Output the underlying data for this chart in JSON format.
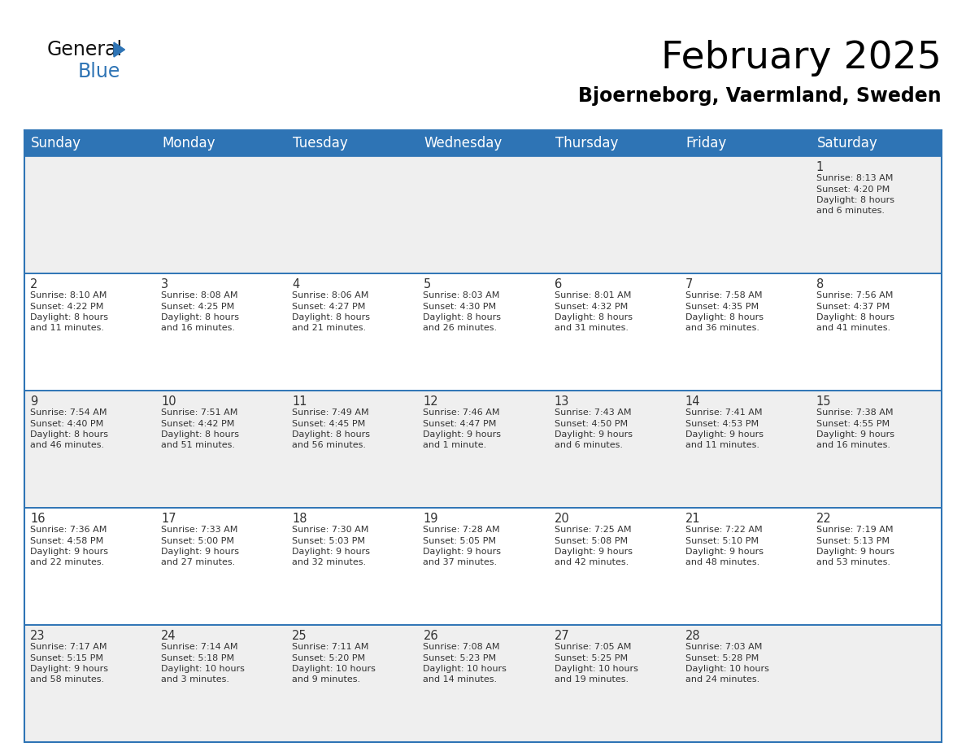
{
  "title": "February 2025",
  "subtitle": "Bjoerneborg, Vaermland, Sweden",
  "header_bg_color": "#2E74B5",
  "header_text_color": "#FFFFFF",
  "cell_bg_even": "#EFEFEF",
  "cell_bg_odd": "#FFFFFF",
  "border_color": "#2E74B5",
  "day_headers": [
    "Sunday",
    "Monday",
    "Tuesday",
    "Wednesday",
    "Thursday",
    "Friday",
    "Saturday"
  ],
  "title_fontsize": 34,
  "subtitle_fontsize": 17,
  "header_fontsize": 12,
  "cell_number_fontsize": 10.5,
  "cell_text_fontsize": 8,
  "logo_general_fontsize": 17,
  "logo_blue_fontsize": 17,
  "logo_color1": "#111111",
  "logo_color2": "#2E74B5",
  "triangle_color": "#2E74B5",
  "days": [
    {
      "day": 1,
      "week_row": 0,
      "col": 6,
      "sunrise": "8:13 AM",
      "sunset": "4:20 PM",
      "daylight_line1": "Daylight: 8 hours",
      "daylight_line2": "and 6 minutes."
    },
    {
      "day": 2,
      "week_row": 1,
      "col": 0,
      "sunrise": "8:10 AM",
      "sunset": "4:22 PM",
      "daylight_line1": "Daylight: 8 hours",
      "daylight_line2": "and 11 minutes."
    },
    {
      "day": 3,
      "week_row": 1,
      "col": 1,
      "sunrise": "8:08 AM",
      "sunset": "4:25 PM",
      "daylight_line1": "Daylight: 8 hours",
      "daylight_line2": "and 16 minutes."
    },
    {
      "day": 4,
      "week_row": 1,
      "col": 2,
      "sunrise": "8:06 AM",
      "sunset": "4:27 PM",
      "daylight_line1": "Daylight: 8 hours",
      "daylight_line2": "and 21 minutes."
    },
    {
      "day": 5,
      "week_row": 1,
      "col": 3,
      "sunrise": "8:03 AM",
      "sunset": "4:30 PM",
      "daylight_line1": "Daylight: 8 hours",
      "daylight_line2": "and 26 minutes."
    },
    {
      "day": 6,
      "week_row": 1,
      "col": 4,
      "sunrise": "8:01 AM",
      "sunset": "4:32 PM",
      "daylight_line1": "Daylight: 8 hours",
      "daylight_line2": "and 31 minutes."
    },
    {
      "day": 7,
      "week_row": 1,
      "col": 5,
      "sunrise": "7:58 AM",
      "sunset": "4:35 PM",
      "daylight_line1": "Daylight: 8 hours",
      "daylight_line2": "and 36 minutes."
    },
    {
      "day": 8,
      "week_row": 1,
      "col": 6,
      "sunrise": "7:56 AM",
      "sunset": "4:37 PM",
      "daylight_line1": "Daylight: 8 hours",
      "daylight_line2": "and 41 minutes."
    },
    {
      "day": 9,
      "week_row": 2,
      "col": 0,
      "sunrise": "7:54 AM",
      "sunset": "4:40 PM",
      "daylight_line1": "Daylight: 8 hours",
      "daylight_line2": "and 46 minutes."
    },
    {
      "day": 10,
      "week_row": 2,
      "col": 1,
      "sunrise": "7:51 AM",
      "sunset": "4:42 PM",
      "daylight_line1": "Daylight: 8 hours",
      "daylight_line2": "and 51 minutes."
    },
    {
      "day": 11,
      "week_row": 2,
      "col": 2,
      "sunrise": "7:49 AM",
      "sunset": "4:45 PM",
      "daylight_line1": "Daylight: 8 hours",
      "daylight_line2": "and 56 minutes."
    },
    {
      "day": 12,
      "week_row": 2,
      "col": 3,
      "sunrise": "7:46 AM",
      "sunset": "4:47 PM",
      "daylight_line1": "Daylight: 9 hours",
      "daylight_line2": "and 1 minute."
    },
    {
      "day": 13,
      "week_row": 2,
      "col": 4,
      "sunrise": "7:43 AM",
      "sunset": "4:50 PM",
      "daylight_line1": "Daylight: 9 hours",
      "daylight_line2": "and 6 minutes."
    },
    {
      "day": 14,
      "week_row": 2,
      "col": 5,
      "sunrise": "7:41 AM",
      "sunset": "4:53 PM",
      "daylight_line1": "Daylight: 9 hours",
      "daylight_line2": "and 11 minutes."
    },
    {
      "day": 15,
      "week_row": 2,
      "col": 6,
      "sunrise": "7:38 AM",
      "sunset": "4:55 PM",
      "daylight_line1": "Daylight: 9 hours",
      "daylight_line2": "and 16 minutes."
    },
    {
      "day": 16,
      "week_row": 3,
      "col": 0,
      "sunrise": "7:36 AM",
      "sunset": "4:58 PM",
      "daylight_line1": "Daylight: 9 hours",
      "daylight_line2": "and 22 minutes."
    },
    {
      "day": 17,
      "week_row": 3,
      "col": 1,
      "sunrise": "7:33 AM",
      "sunset": "5:00 PM",
      "daylight_line1": "Daylight: 9 hours",
      "daylight_line2": "and 27 minutes."
    },
    {
      "day": 18,
      "week_row": 3,
      "col": 2,
      "sunrise": "7:30 AM",
      "sunset": "5:03 PM",
      "daylight_line1": "Daylight: 9 hours",
      "daylight_line2": "and 32 minutes."
    },
    {
      "day": 19,
      "week_row": 3,
      "col": 3,
      "sunrise": "7:28 AM",
      "sunset": "5:05 PM",
      "daylight_line1": "Daylight: 9 hours",
      "daylight_line2": "and 37 minutes."
    },
    {
      "day": 20,
      "week_row": 3,
      "col": 4,
      "sunrise": "7:25 AM",
      "sunset": "5:08 PM",
      "daylight_line1": "Daylight: 9 hours",
      "daylight_line2": "and 42 minutes."
    },
    {
      "day": 21,
      "week_row": 3,
      "col": 5,
      "sunrise": "7:22 AM",
      "sunset": "5:10 PM",
      "daylight_line1": "Daylight: 9 hours",
      "daylight_line2": "and 48 minutes."
    },
    {
      "day": 22,
      "week_row": 3,
      "col": 6,
      "sunrise": "7:19 AM",
      "sunset": "5:13 PM",
      "daylight_line1": "Daylight: 9 hours",
      "daylight_line2": "and 53 minutes."
    },
    {
      "day": 23,
      "week_row": 4,
      "col": 0,
      "sunrise": "7:17 AM",
      "sunset": "5:15 PM",
      "daylight_line1": "Daylight: 9 hours",
      "daylight_line2": "and 58 minutes."
    },
    {
      "day": 24,
      "week_row": 4,
      "col": 1,
      "sunrise": "7:14 AM",
      "sunset": "5:18 PM",
      "daylight_line1": "Daylight: 10 hours",
      "daylight_line2": "and 3 minutes."
    },
    {
      "day": 25,
      "week_row": 4,
      "col": 2,
      "sunrise": "7:11 AM",
      "sunset": "5:20 PM",
      "daylight_line1": "Daylight: 10 hours",
      "daylight_line2": "and 9 minutes."
    },
    {
      "day": 26,
      "week_row": 4,
      "col": 3,
      "sunrise": "7:08 AM",
      "sunset": "5:23 PM",
      "daylight_line1": "Daylight: 10 hours",
      "daylight_line2": "and 14 minutes."
    },
    {
      "day": 27,
      "week_row": 4,
      "col": 4,
      "sunrise": "7:05 AM",
      "sunset": "5:25 PM",
      "daylight_line1": "Daylight: 10 hours",
      "daylight_line2": "and 19 minutes."
    },
    {
      "day": 28,
      "week_row": 4,
      "col": 5,
      "sunrise": "7:03 AM",
      "sunset": "5:28 PM",
      "daylight_line1": "Daylight: 10 hours",
      "daylight_line2": "and 24 minutes."
    }
  ]
}
